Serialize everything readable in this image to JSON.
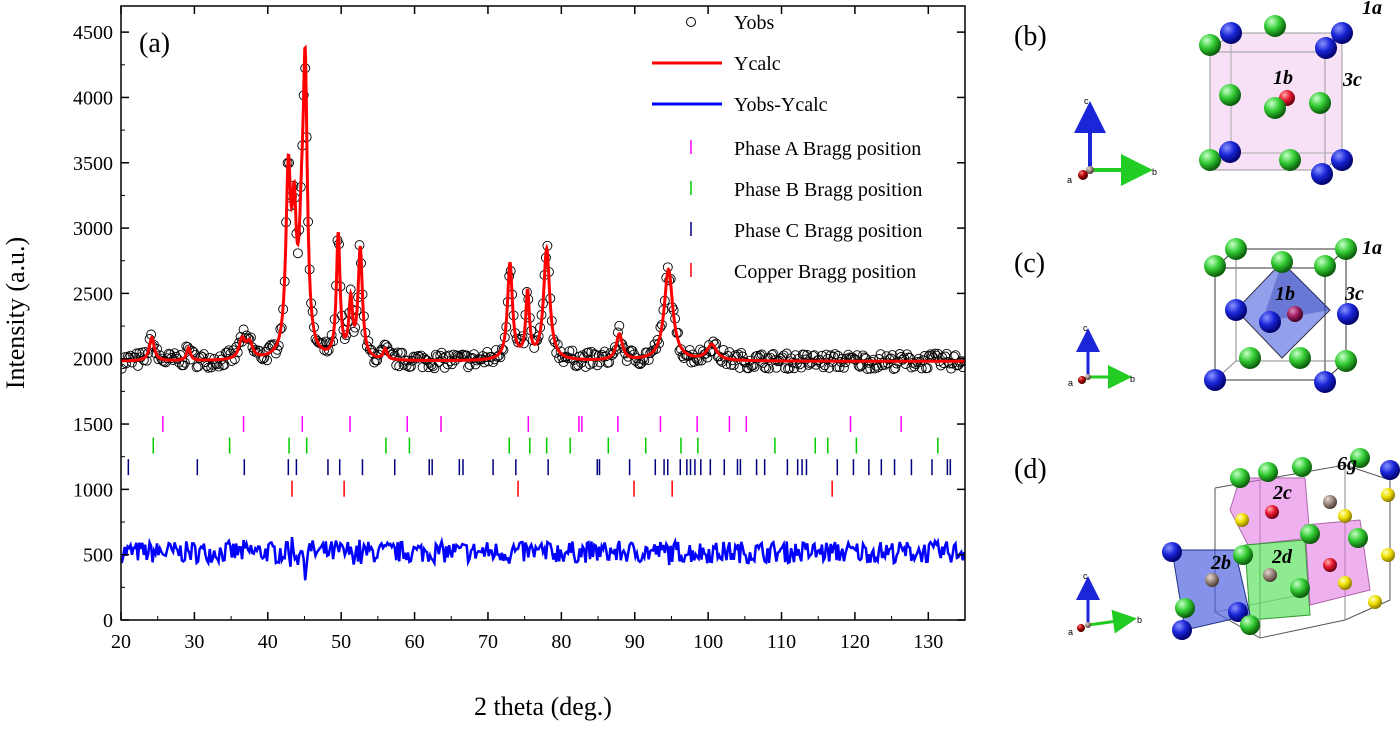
{
  "chart_data": {
    "type": "line",
    "panel_label": "(a)",
    "xlabel": "2 theta (deg.)",
    "ylabel": "Intensity (a.u.)",
    "xlim": [
      20,
      135
    ],
    "ylim": [
      0,
      4700
    ],
    "xticks": [
      20,
      30,
      40,
      50,
      60,
      70,
      80,
      90,
      100,
      110,
      120,
      130
    ],
    "yticks": [
      0,
      500,
      1000,
      1500,
      2000,
      2500,
      3000,
      3500,
      4000,
      4500
    ],
    "legend_position": "top-right",
    "baseline": 1980,
    "diff_offset": 520,
    "peaks": [
      {
        "x": 24.2,
        "h": 180,
        "w": 0.4
      },
      {
        "x": 29.2,
        "h": 100,
        "w": 0.3
      },
      {
        "x": 36.5,
        "h": 150,
        "w": 0.5
      },
      {
        "x": 37.5,
        "h": 120,
        "w": 0.5
      },
      {
        "x": 42.8,
        "h": 1350,
        "w": 0.4
      },
      {
        "x": 43.6,
        "h": 900,
        "w": 0.35
      },
      {
        "x": 45.1,
        "h": 2050,
        "w": 0.35
      },
      {
        "x": 44.6,
        "h": 650,
        "w": 0.4
      },
      {
        "x": 49.6,
        "h": 940,
        "w": 0.3
      },
      {
        "x": 51.3,
        "h": 420,
        "w": 0.3
      },
      {
        "x": 52.6,
        "h": 840,
        "w": 0.35
      },
      {
        "x": 56,
        "h": 80,
        "w": 0.3
      },
      {
        "x": 73,
        "h": 740,
        "w": 0.4
      },
      {
        "x": 75.4,
        "h": 500,
        "w": 0.3
      },
      {
        "x": 78,
        "h": 850,
        "w": 0.5
      },
      {
        "x": 87.9,
        "h": 200,
        "w": 0.5
      },
      {
        "x": 94.6,
        "h": 700,
        "w": 0.7
      },
      {
        "x": 100.5,
        "h": 120,
        "w": 0.8
      }
    ],
    "series": [
      {
        "name": "Yobs",
        "marker": "open-circle",
        "color": "#000000"
      },
      {
        "name": "Ycalc",
        "color": "#ff0000"
      },
      {
        "name": "Yobs-Ycalc",
        "color": "#0000ff"
      }
    ],
    "bragg_positions": [
      {
        "name": "Phase A Bragg position",
        "color": "#ff00ff",
        "y": 1500,
        "x": [
          25.7,
          36.7,
          44.7,
          51.2,
          59.0,
          63.6,
          75.5,
          82.4,
          82.8,
          87.7,
          93.5,
          98.5,
          102.9,
          105.2,
          119.4,
          126.3
        ]
      },
      {
        "name": "Phase B Bragg position",
        "color": "#00cc00",
        "y": 1335,
        "x": [
          24.4,
          34.8,
          42.9,
          45.3,
          56.1,
          59.3,
          72.9,
          75.7,
          78.0,
          81.2,
          86.4,
          91.5,
          96.3,
          98.6,
          109.1,
          114.6,
          116.3,
          120.2,
          131.3
        ]
      },
      {
        "name": "Phase C Bragg position",
        "color": "#000080",
        "y": 1170,
        "x": [
          21.0,
          30.4,
          36.8,
          42.8,
          43.9,
          48.2,
          49.8,
          52.9,
          57.3,
          62.0,
          62.4,
          66.1,
          66.6,
          70.7,
          73.8,
          78.2,
          84.9,
          85.2,
          89.3,
          92.8,
          94.0,
          94.5,
          96.2,
          97.1,
          97.6,
          98.2,
          99.0,
          100.3,
          102.2,
          104.0,
          104.4,
          106.6,
          107.7,
          110.8,
          112.2,
          112.8,
          113.4,
          117.6,
          119.8,
          121.9,
          123.6,
          125.4,
          127.7,
          130.5,
          132.6,
          133.0
        ]
      },
      {
        "name": "Copper  Bragg position",
        "color": "#ff0000",
        "y": 1005,
        "x": [
          43.3,
          50.4,
          74.1,
          89.9,
          95.1,
          116.9
        ]
      }
    ]
  },
  "structures": [
    {
      "panel": "(b)",
      "sites": [
        "1a",
        "1b",
        "3c"
      ],
      "axes": [
        "c",
        "a",
        "b"
      ]
    },
    {
      "panel": "(c)",
      "sites": [
        "1a",
        "1b",
        "3c"
      ],
      "axes": [
        "c",
        "a",
        "b"
      ]
    },
    {
      "panel": "(d)",
      "sites": [
        "6g",
        "2c",
        "2d",
        "2b"
      ],
      "axes": [
        "c",
        "a",
        "b"
      ]
    }
  ],
  "colors": {
    "atom_blue": "#0a1ad0",
    "atom_green": "#2ecc40",
    "atom_red": "#e6194b",
    "atom_yellow": "#f5e000"
  }
}
